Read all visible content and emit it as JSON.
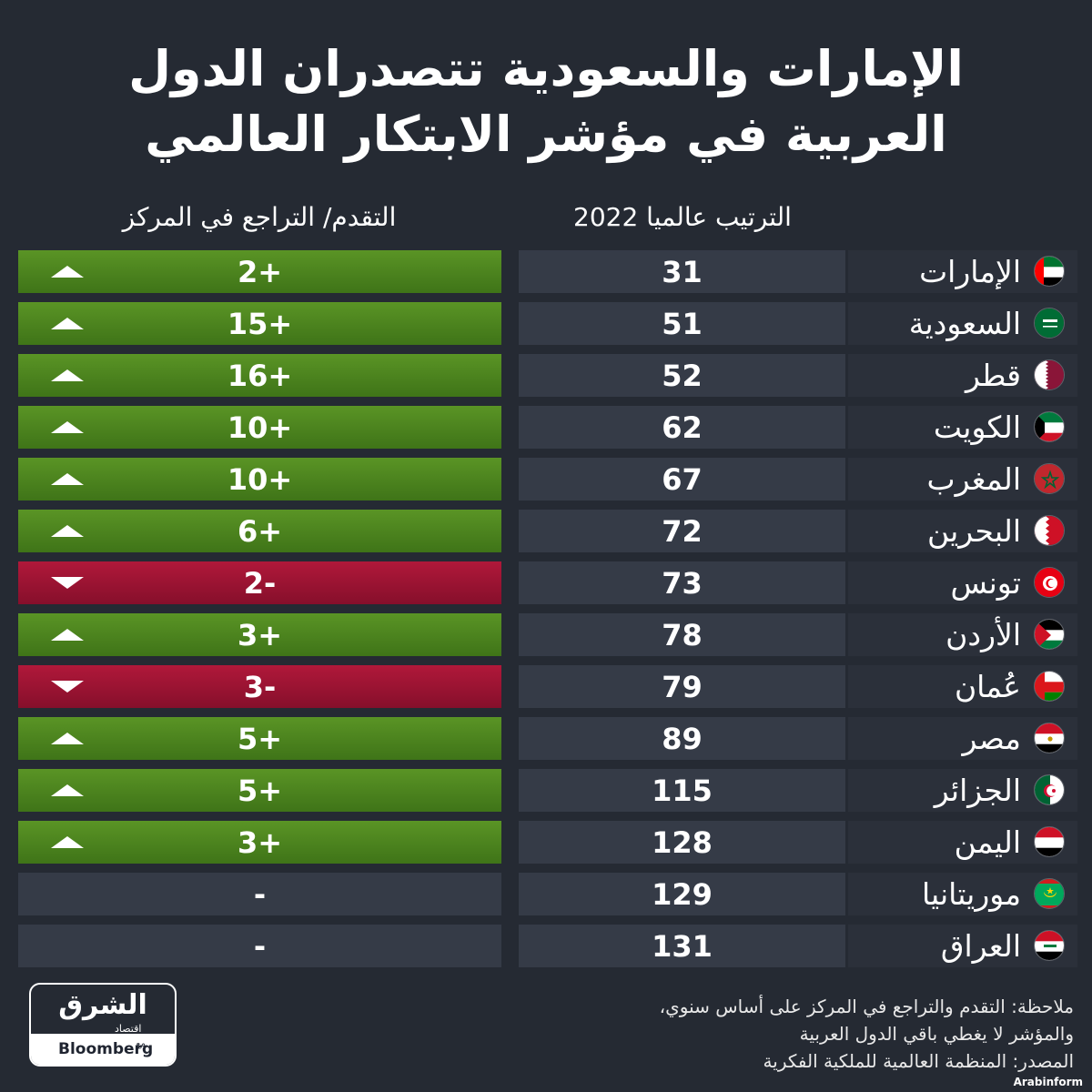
{
  "title": {
    "line1": "الإمارات والسعودية تتصدران الدول",
    "line2": "العربية في مؤشر الابتكار العالمي"
  },
  "chart_data": {
    "type": "table",
    "columns": {
      "rank": "الترتيب عالميا 2022",
      "change": "التقدم/ التراجع في المركز"
    },
    "rows": [
      {
        "country": "الإمارات",
        "flag": "uae-flag-icon",
        "rank": "31",
        "change": "2+",
        "direction": "up"
      },
      {
        "country": "السعودية",
        "flag": "saudi-flag-icon",
        "rank": "51",
        "change": "15+",
        "direction": "up"
      },
      {
        "country": "قطر",
        "flag": "qatar-flag-icon",
        "rank": "52",
        "change": "16+",
        "direction": "up"
      },
      {
        "country": "الكويت",
        "flag": "kuwait-flag-icon",
        "rank": "62",
        "change": "10+",
        "direction": "up"
      },
      {
        "country": "المغرب",
        "flag": "morocco-flag-icon",
        "rank": "67",
        "change": "10+",
        "direction": "up"
      },
      {
        "country": "البحرين",
        "flag": "bahrain-flag-icon",
        "rank": "72",
        "change": "6+",
        "direction": "up"
      },
      {
        "country": "تونس",
        "flag": "tunisia-flag-icon",
        "rank": "73",
        "change": "2-",
        "direction": "down"
      },
      {
        "country": "الأردن",
        "flag": "jordan-flag-icon",
        "rank": "78",
        "change": "3+",
        "direction": "up"
      },
      {
        "country": "عُمان",
        "flag": "oman-flag-icon",
        "rank": "79",
        "change": "3-",
        "direction": "down"
      },
      {
        "country": "مصر",
        "flag": "egypt-flag-icon",
        "rank": "89",
        "change": "5+",
        "direction": "up"
      },
      {
        "country": "الجزائر",
        "flag": "algeria-flag-icon",
        "rank": "115",
        "change": "5+",
        "direction": "up"
      },
      {
        "country": "اليمن",
        "flag": "yemen-flag-icon",
        "rank": "128",
        "change": "3+",
        "direction": "up"
      },
      {
        "country": "موريتانيا",
        "flag": "mauritania-flag-icon",
        "rank": "129",
        "change": "-",
        "direction": "none"
      },
      {
        "country": "العراق",
        "flag": "iraq-flag-icon",
        "rank": "131",
        "change": "-",
        "direction": "none"
      }
    ]
  },
  "colors": {
    "background": "#252a33",
    "up": "#4f8a20",
    "down": "#a3143a",
    "neutral": "#353b47"
  },
  "notes": {
    "line1": "ملاحظة: التقدم والتراجع في المركز على أساس سنوي،",
    "line2": "والمؤشر لا يغطي باقي الدول العربية",
    "line3": "المصدر: المنظمة العالمية للملكية الفكرية"
  },
  "logo": {
    "brand": "الشرق",
    "sub": "اقتصاد",
    "with": "مع",
    "partner": "Bloomberg"
  },
  "watermark": "Arabinform"
}
